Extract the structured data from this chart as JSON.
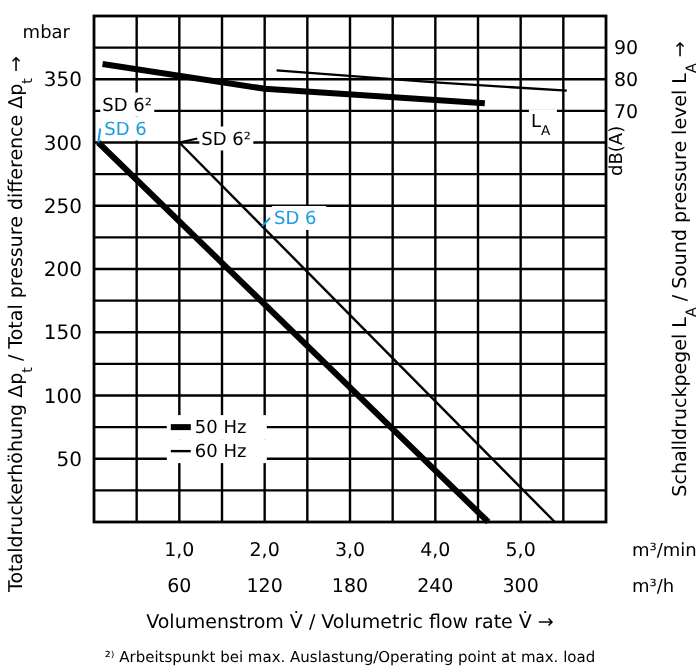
{
  "chart_data": {
    "type": "line",
    "xlabel": "Volumenstrom V̇ / Volumetric flow rate V̇ →",
    "ylabel": "Totaldruckerhöhung Δp$_{t}$ / Total pressure difference Δp$_{t}$ →",
    "y2label": "Schalldruckpegel L$_{A}$ / Sound pressure level L$_{A}$ →",
    "xlim": [
      0,
      6
    ],
    "xticks": [
      {
        "value": 0.5,
        "label": null
      },
      {
        "value": 1,
        "label": "1,0"
      },
      {
        "value": 1.5,
        "label": null
      },
      {
        "value": 2,
        "label": "2,0"
      },
      {
        "value": 2.5,
        "label": null
      },
      {
        "value": 3,
        "label": "3,0"
      },
      {
        "value": 3.5,
        "label": null
      },
      {
        "value": 4,
        "label": "4,0"
      },
      {
        "value": 4.5,
        "label": null
      },
      {
        "value": 5,
        "label": "5,0"
      },
      {
        "value": 5.5,
        "label": null
      }
    ],
    "x2lim": [
      0,
      360
    ],
    "x2ticks": [
      60,
      120,
      180,
      240,
      300
    ],
    "ylim": [
      0,
      400
    ],
    "yticks": [
      {
        "value": 25,
        "label": null
      },
      50,
      {
        "value": 75,
        "label": null
      },
      100,
      {
        "value": 125,
        "label": null
      },
      150,
      {
        "value": 175,
        "label": null
      },
      200,
      {
        "value": 225,
        "label": null
      },
      250,
      {
        "value": 275,
        "label": null
      },
      300,
      {
        "value": 325,
        "label": null
      },
      350,
      {
        "value": 375,
        "label": null
      }
    ],
    "y2lim": [
      -60,
      100
    ],
    "y2ticks": [
      70,
      80,
      90
    ],
    "grid": true,
    "legend": "bottom left",
    "tick_labels": "xy",
    "series": [
      {
        "name": "50 Hz",
        "color": "#000000",
        "x": [
          0.05,
          4.62
        ],
        "values": [
          300,
          0
        ]
      },
      {
        "name": "60 Hz",
        "color": "#000000",
        "x": [
          1.0,
          5.4
        ],
        "values": [
          300,
          0
        ]
      },
      {
        "color": "#000000",
        "axis": "y2",
        "x": [
          0.1,
          2.0,
          4.58
        ],
        "values": [
          84.8,
          77,
          72.4
        ]
      },
      {
        "color": "#000000",
        "axis": "y2",
        "x": [
          2.14,
          4.0,
          5.54
        ],
        "values": [
          82.8,
          79,
          76.4
        ]
      }
    ],
    "annotations": [
      "mbar",
      "dB(A)",
      "m³/min",
      "m³/h",
      "²⁾ Arbeitspunkt bei max. Auslastung/Operating point at max. load",
      {
        "text": "SD 6²",
        "x": 0.05,
        "y": 300
      },
      {
        "text": "SD 6",
        "x": 0.05,
        "y": 300
      },
      {
        "text": "SD 6²",
        "x": 1.0,
        "y": 300
      },
      {
        "text": "SD 6",
        "x": 1.97,
        "y": 234
      },
      "L$_{A}$"
    ]
  }
}
